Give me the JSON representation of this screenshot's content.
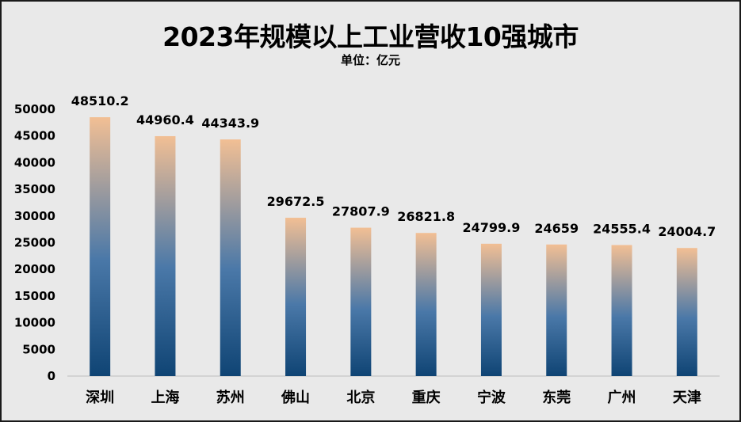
{
  "chart_data": {
    "type": "bar",
    "title": "2023年规模以上工业营收10强城市",
    "subtitle": "单位：亿元",
    "categories": [
      "深圳",
      "上海",
      "苏州",
      "佛山",
      "北京",
      "重庆",
      "宁波",
      "东莞",
      "广州",
      "天津"
    ],
    "values": [
      48510.2,
      44960.4,
      44343.9,
      29672.5,
      27807.9,
      26821.8,
      24799.9,
      24659,
      24555.4,
      24004.7
    ],
    "value_labels": [
      "48510.2",
      "44960.4",
      "44343.9",
      "29672.5",
      "27807.9",
      "26821.8",
      "24799.9",
      "24659",
      "24555.4",
      "24004.7"
    ],
    "yticks": [
      "0",
      "5000",
      "10000",
      "15000",
      "20000",
      "25000",
      "30000",
      "35000",
      "40000",
      "45000",
      "50000"
    ],
    "ylim": [
      0,
      50000
    ],
    "grid": false,
    "colors": {
      "bar_top": "#f2bf94",
      "bar_mid": "#4a78a8",
      "bar_bottom": "#0f4474",
      "background": "#e9e9e9"
    }
  }
}
